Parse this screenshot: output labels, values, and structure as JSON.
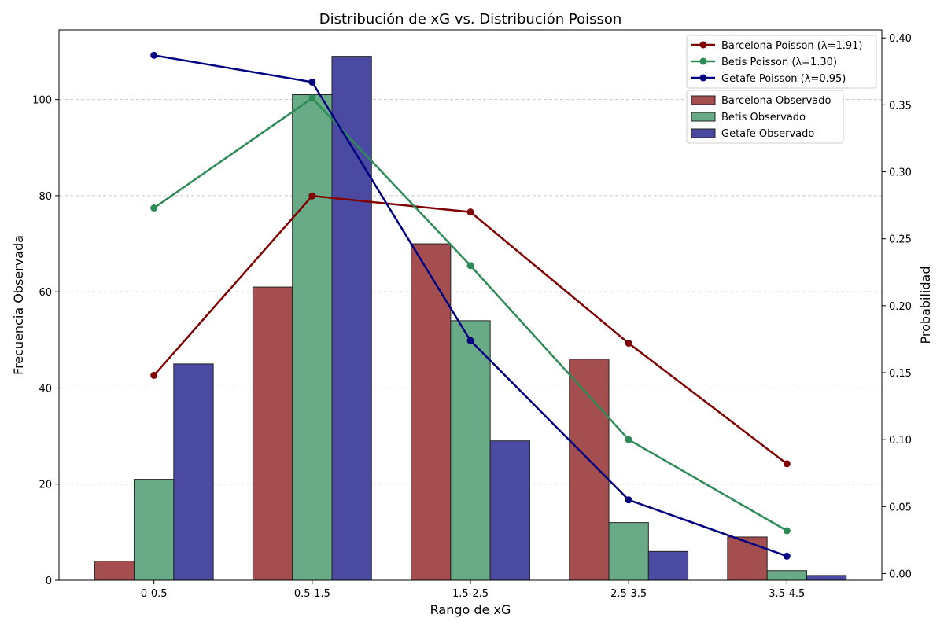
{
  "chart_data": {
    "type": "bar",
    "title": "Distribución de xG vs. Distribución Poisson",
    "xlabel": "Rango de xG",
    "ylabel": "Frecuencia Observada",
    "ylabel_right": "Probabilidad",
    "categories": [
      "0-0.5",
      "0.5-1.5",
      "1.5-2.5",
      "2.5-3.5",
      "3.5-4.5"
    ],
    "ylim": [
      0,
      114.5
    ],
    "ylim_right": [
      -0.005,
      0.406
    ],
    "yticks": [
      0,
      20,
      40,
      60,
      80,
      100
    ],
    "yticks_right": [
      "0.00",
      "0.05",
      "0.10",
      "0.15",
      "0.20",
      "0.25",
      "0.30",
      "0.35",
      "0.40"
    ],
    "grid": "horizontal dashed",
    "legend_position": "top-right",
    "bar_series": [
      {
        "name": "Barcelona Observado",
        "color": "#a44e4f",
        "values": [
          4,
          61,
          70,
          46,
          9
        ]
      },
      {
        "name": "Betis Observado",
        "color": "#6aab87",
        "values": [
          21,
          101,
          54,
          12,
          2
        ]
      },
      {
        "name": "Getafe Observado",
        "color": "#4b4aa3",
        "values": [
          45,
          109,
          29,
          6,
          1
        ]
      }
    ],
    "line_series": [
      {
        "name": "Barcelona Poisson (λ=1.91)",
        "color": "#800000",
        "values": [
          0.148,
          0.282,
          0.27,
          0.172,
          0.082
        ]
      },
      {
        "name": "Betis Poisson (λ=1.30)",
        "color": "#2e8b57",
        "values": [
          0.273,
          0.355,
          0.23,
          0.1,
          0.032
        ]
      },
      {
        "name": "Getafe Poisson (λ=0.95)",
        "color": "#000080",
        "values": [
          0.387,
          0.367,
          0.174,
          0.055,
          0.013
        ]
      }
    ]
  }
}
